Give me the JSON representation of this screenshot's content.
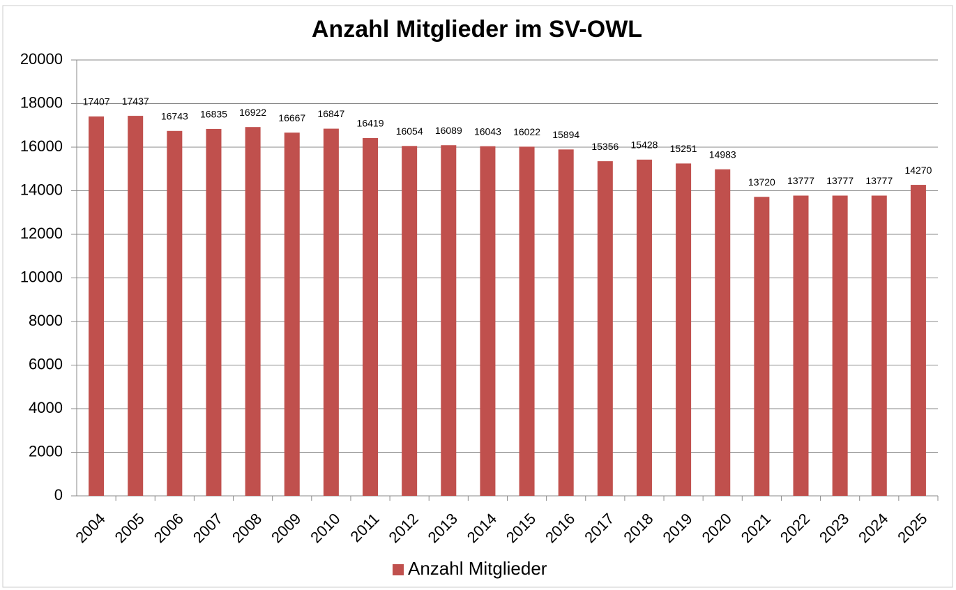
{
  "chart_data": {
    "type": "bar",
    "title": "Anzahl Mitglieder im SV-OWL",
    "categories": [
      "2004",
      "2005",
      "2006",
      "2007",
      "2008",
      "2009",
      "2010",
      "2011",
      "2012",
      "2013",
      "2014",
      "2015",
      "2016",
      "2017",
      "2018",
      "2019",
      "2020",
      "2021",
      "2022",
      "2023",
      "2024",
      "2025"
    ],
    "series": [
      {
        "name": "Anzahl Mitglieder",
        "color": "#c0504d",
        "values": [
          17407,
          17437,
          16743,
          16835,
          16922,
          16667,
          16847,
          16419,
          16054,
          16089,
          16043,
          16022,
          15894,
          15356,
          15428,
          15251,
          14983,
          13720,
          13777,
          13777,
          13777,
          14270
        ]
      }
    ],
    "ylim": [
      0,
      20000
    ],
    "yticks": [
      0,
      2000,
      4000,
      6000,
      8000,
      10000,
      12000,
      14000,
      16000,
      18000,
      20000
    ],
    "grid": true,
    "legend": "bottom"
  }
}
